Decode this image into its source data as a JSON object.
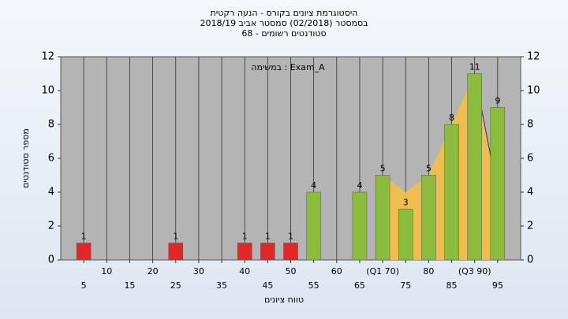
{
  "chart_data": {
    "type": "bar",
    "title": "היסטוגרמת ציונים בקורס - הנעה רקטית",
    "subtitle": "בסמסטר  (02/2018)  סמסטר אביב 2018/19",
    "subtitle2": "סטודנטים רשומים - 68",
    "annotation": "במשימה : Exam_A",
    "x_label": "טווח ציונים",
    "y_label": "מספר סטודנטים",
    "categories": [
      "5",
      "10",
      "15",
      "20",
      "25",
      "30",
      "35",
      "40",
      "45",
      "50",
      "55",
      "60",
      "65",
      "(Q1 70)",
      "75",
      "80",
      "85",
      "(Q3 90)",
      "95"
    ],
    "values": [
      1,
      null,
      null,
      null,
      1,
      null,
      null,
      1,
      1,
      1,
      4,
      null,
      4,
      5,
      3,
      5,
      8,
      11,
      9
    ],
    "colors": [
      "#e02828",
      null,
      null,
      null,
      "#e02828",
      null,
      null,
      "#e02828",
      "#e02828",
      "#e02828",
      "#8cbc3c",
      null,
      "#8cbc3c",
      "#8cbc3c",
      "#8cbc3c",
      "#8cbc3c",
      "#8cbc3c",
      "#8cbc3c",
      "#8cbc3c"
    ],
    "band_values": [
      null,
      null,
      null,
      null,
      null,
      null,
      null,
      null,
      null,
      null,
      null,
      null,
      null,
      5,
      4,
      5,
      8,
      11,
      4
    ],
    "band_color": "#f8c040",
    "ylim": [
      0,
      12
    ],
    "yticks": [
      0,
      2,
      4,
      6,
      8,
      10,
      12
    ],
    "y2ticks": [
      0,
      2,
      4,
      6,
      8,
      10,
      12
    ],
    "grid": true
  }
}
